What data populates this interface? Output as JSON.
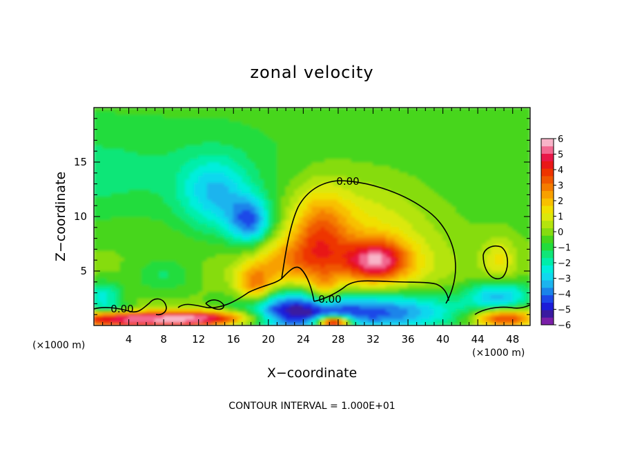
{
  "chart_data": {
    "type": "heatmap",
    "title": "zonal velocity",
    "xlabel": "X−coordinate",
    "ylabel": "Z−coordinate",
    "x_unit_left": "(×1000 m)",
    "x_unit_right": "(×1000 m)",
    "footer": "CONTOUR INTERVAL = 1.000E+01",
    "xlim": [
      0,
      50
    ],
    "ylim": [
      0,
      20
    ],
    "x_ticks": [
      4,
      8,
      12,
      16,
      20,
      24,
      28,
      32,
      36,
      40,
      44,
      48
    ],
    "x_tick_labels": [
      "4",
      "8",
      "12",
      "16",
      "20",
      "24",
      "28",
      "32",
      "36",
      "40",
      "44",
      "48"
    ],
    "y_ticks": [
      5,
      10,
      15
    ],
    "y_tick_labels": [
      "5",
      "10",
      "15"
    ],
    "colorbar": {
      "min": -6,
      "max": 6,
      "labels": [
        "6",
        "5",
        "4",
        "3",
        "2",
        "1",
        "0",
        "−1",
        "−2",
        "−3",
        "−4",
        "−5",
        "−6"
      ],
      "colors": [
        "#7a1fa8",
        "#3a1aa0",
        "#1c1cd8",
        "#1c48e8",
        "#1a84ea",
        "#1cb4ee",
        "#10d8ee",
        "#00eedc",
        "#00eeaa",
        "#10e678",
        "#22dc3c",
        "#46d61c",
        "#86dc10",
        "#b4e40e",
        "#dce80c",
        "#f0e000",
        "#f8c000",
        "#f8a000",
        "#f47c00",
        "#f05800",
        "#ee3400",
        "#e81818",
        "#e81848",
        "#f26890",
        "#f8b4c8"
      ]
    },
    "contours": [
      {
        "label": "0.00",
        "value": 0
      },
      {
        "label": "0.00",
        "value": 0
      },
      {
        "label": "0.00",
        "value": 0
      }
    ],
    "features": [
      {
        "kind": "min",
        "x": 18,
        "z": 9.5,
        "v": -4.5
      },
      {
        "kind": "min",
        "x": 14,
        "z": 12,
        "v": -3.2
      },
      {
        "kind": "max",
        "x": 32.5,
        "z": 6,
        "v": 5.6
      },
      {
        "kind": "max",
        "x": 26,
        "z": 8.5,
        "v": 3.6
      },
      {
        "kind": "max",
        "x": 18,
        "z": 3.5,
        "v": 3.5
      },
      {
        "kind": "min",
        "x": 32,
        "z": 1.3,
        "v": -5
      },
      {
        "kind": "min",
        "x": 22,
        "z": 1.3,
        "v": -4.5
      },
      {
        "kind": "max",
        "x": 5,
        "z": 0.6,
        "v": 5.5
      },
      {
        "kind": "max",
        "x": 47,
        "z": 0.8,
        "v": 4.5
      },
      {
        "kind": "min",
        "x": 47,
        "z": 3,
        "v": -3.5
      }
    ]
  }
}
